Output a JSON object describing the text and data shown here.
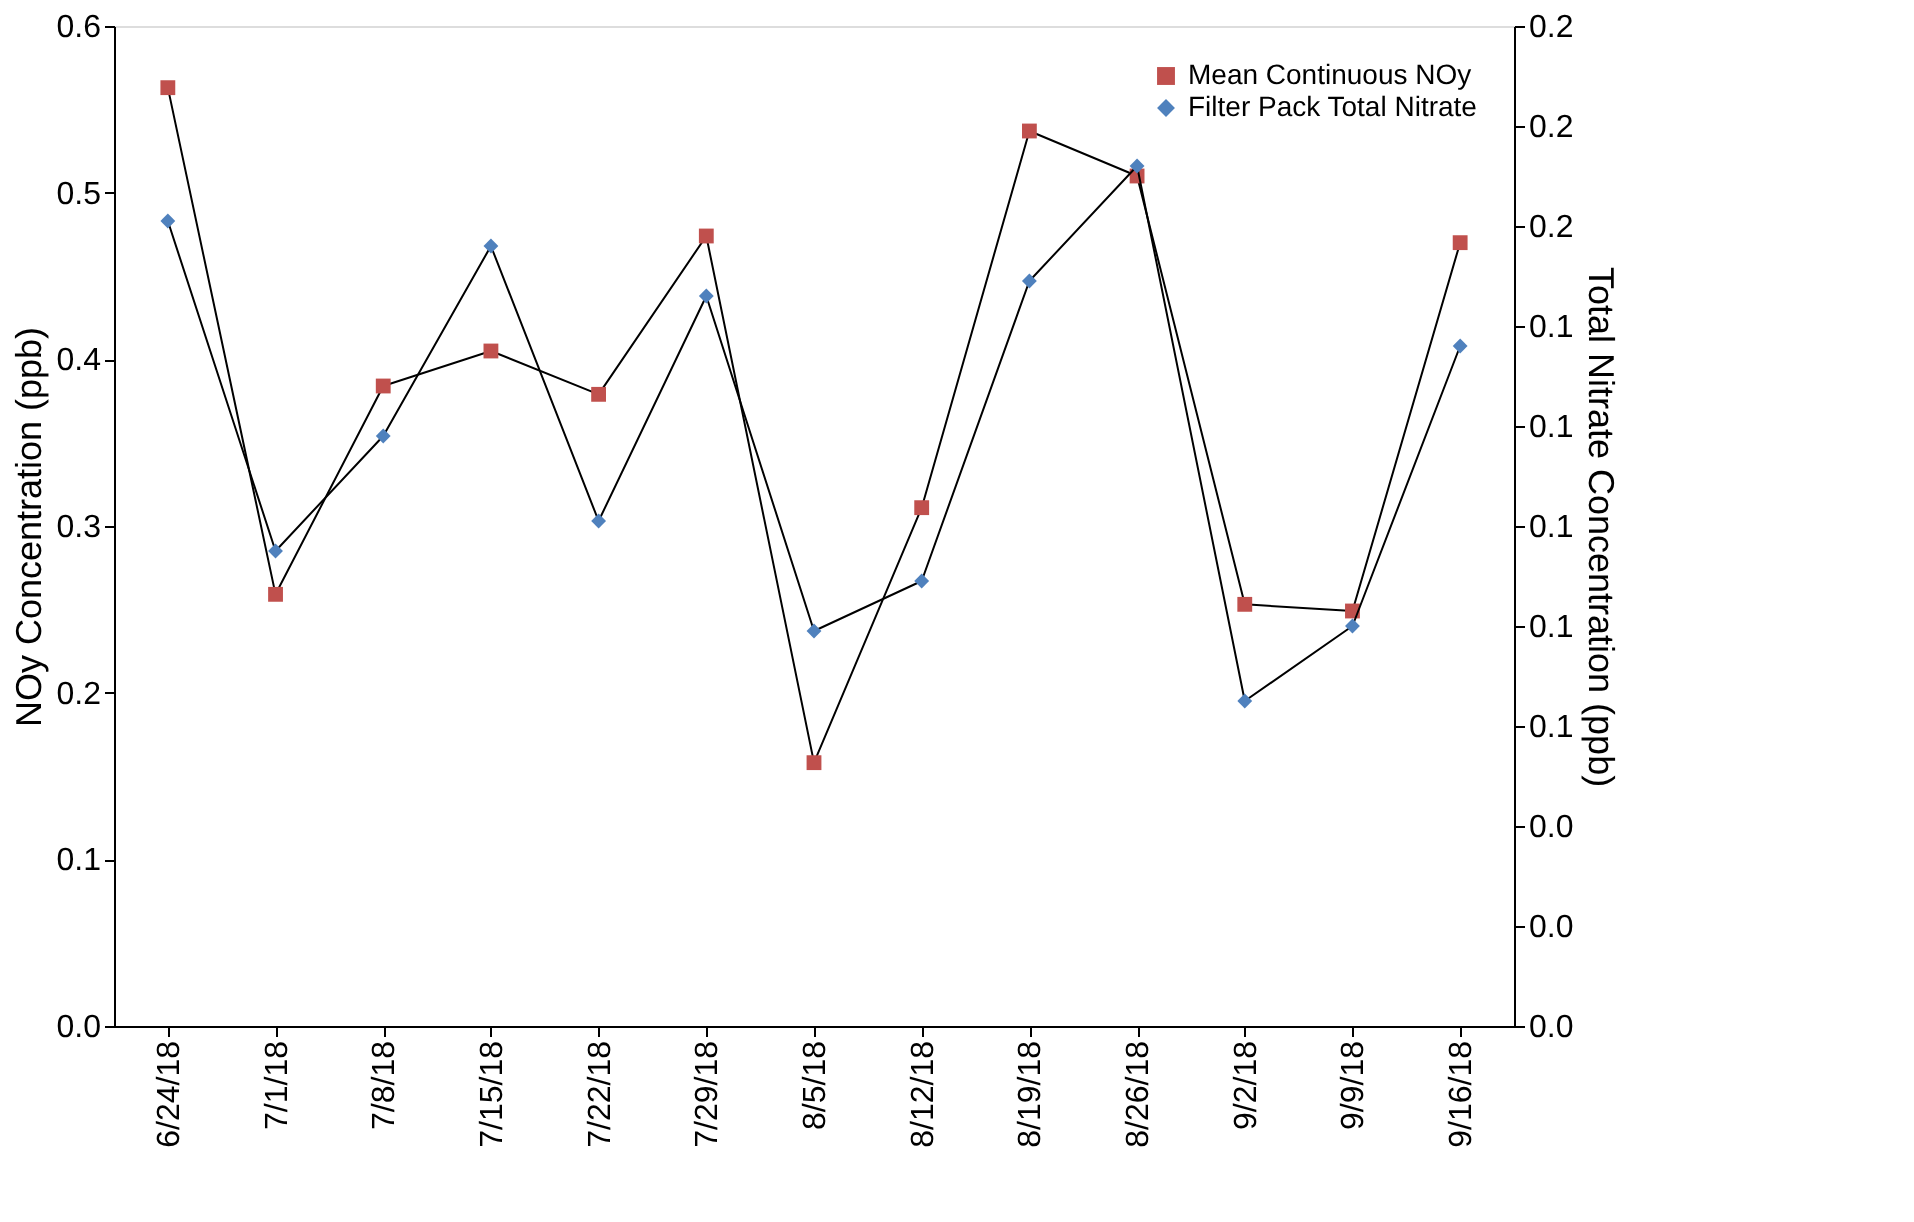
{
  "chart_data": {
    "type": "line",
    "categories": [
      "6/24/18",
      "7/1/18",
      "7/8/18",
      "7/15/18",
      "7/22/18",
      "7/29/18",
      "8/5/18",
      "8/12/18",
      "8/19/18",
      "8/26/18",
      "9/2/18",
      "9/9/18",
      "9/16/18"
    ],
    "series": [
      {
        "name": "Mean Continuous NOy",
        "color": "#c0504d",
        "marker": "square",
        "values": [
          0.563,
          0.259,
          0.384,
          0.405,
          0.379,
          0.474,
          0.158,
          0.311,
          0.537,
          0.51,
          0.253,
          0.249,
          0.47
        ]
      },
      {
        "name": "Filter Pack Total Nitrate",
        "color": "#4f81bd",
        "marker": "diamond",
        "axis": "y2",
        "values": [
          0.161,
          0.095,
          0.118,
          0.156,
          0.101,
          0.146,
          0.079,
          0.089,
          0.149,
          0.172,
          0.065,
          0.08,
          0.136
        ]
      }
    ],
    "ylabel": "NOy Concentration (ppb)",
    "y2label": "Total Nitrate Concentration (ppb)",
    "ylim": [
      0,
      0.6
    ],
    "yticks": [
      {
        "value": 0,
        "label": "0.0"
      },
      0.1,
      0.2,
      0.3,
      0.4,
      0.5,
      0.6
    ],
    "y2lim": [
      0,
      0.2
    ],
    "y2ticks": [
      {
        "value": 0,
        "label": "0.0"
      },
      {
        "value": 0.02,
        "label": "0.0"
      },
      {
        "value": 0.04,
        "label": "0.0"
      },
      {
        "value": 0.06,
        "label": "0.1"
      },
      {
        "value": 0.08,
        "label": "0.1"
      },
      {
        "value": 0.1,
        "label": "0.1"
      },
      {
        "value": 0.12,
        "label": "0.1"
      },
      {
        "value": 0.14,
        "label": "0.1"
      },
      {
        "value": 0.16,
        "label": "0.2"
      },
      {
        "value": 0.18,
        "label": "0.2"
      },
      {
        "value": 0.2,
        "label": "0.2"
      }
    ],
    "grid": false,
    "legend": "top right",
    "line_style": "solid"
  }
}
